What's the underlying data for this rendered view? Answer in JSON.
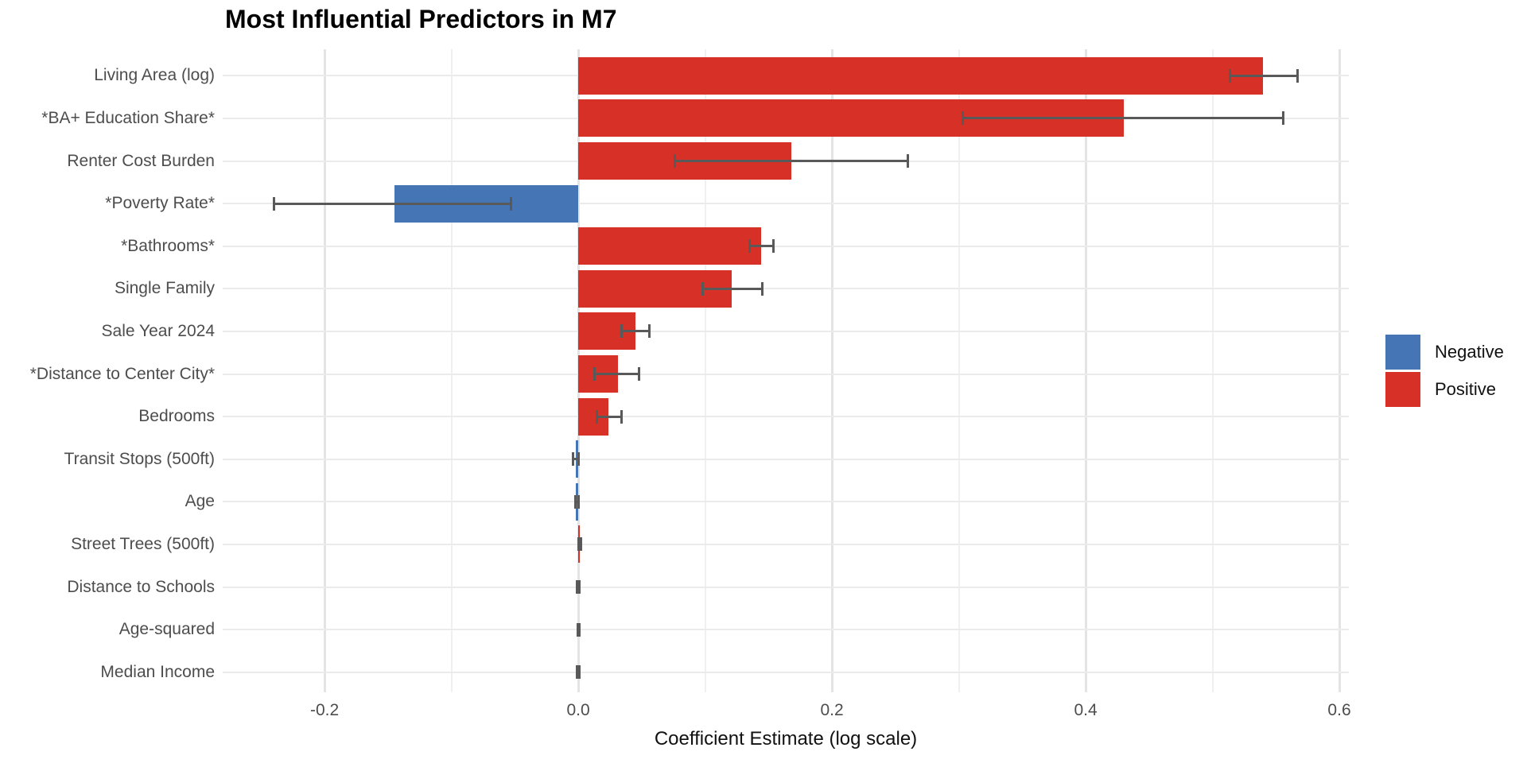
{
  "title": "Most Influential Predictors in M7",
  "chart_data": {
    "type": "bar",
    "orientation": "horizontal",
    "title": "Most Influential Predictors in M7",
    "xlabel": "Coefficient Estimate (log scale)",
    "ylabel": "",
    "xlim": [
      -0.2803,
      0.6075
    ],
    "x_ticks": [
      {
        "value": -0.2,
        "label": "-0.2"
      },
      {
        "value": 0.0,
        "label": "0.0"
      },
      {
        "value": 0.2,
        "label": "0.2"
      },
      {
        "value": 0.4,
        "label": "0.4"
      },
      {
        "value": 0.6,
        "label": "0.6"
      }
    ],
    "x_minor_gridlines": [
      -0.1,
      0.1,
      0.3,
      0.5
    ],
    "grid": true,
    "items": [
      {
        "label": "Living Area (log)",
        "value": 0.54,
        "ci_low": 0.514,
        "ci_high": 0.567,
        "sign": "positive"
      },
      {
        "label": "*BA+ Education Share*",
        "value": 0.43,
        "ci_low": 0.303,
        "ci_high": 0.556,
        "sign": "positive"
      },
      {
        "label": "Renter Cost Burden",
        "value": 0.168,
        "ci_low": 0.076,
        "ci_high": 0.26,
        "sign": "positive"
      },
      {
        "label": "*Poverty Rate*",
        "value": -0.145,
        "ci_low": -0.24,
        "ci_high": -0.053,
        "sign": "negative"
      },
      {
        "label": "*Bathrooms*",
        "value": 0.144,
        "ci_low": 0.135,
        "ci_high": 0.154,
        "sign": "positive"
      },
      {
        "label": "Single Family",
        "value": 0.121,
        "ci_low": 0.098,
        "ci_high": 0.145,
        "sign": "positive"
      },
      {
        "label": "Sale Year 2024",
        "value": 0.045,
        "ci_low": 0.034,
        "ci_high": 0.056,
        "sign": "positive"
      },
      {
        "label": "*Distance to Center City*",
        "value": 0.031,
        "ci_low": 0.013,
        "ci_high": 0.048,
        "sign": "positive"
      },
      {
        "label": "Bedrooms",
        "value": 0.024,
        "ci_low": 0.015,
        "ci_high": 0.034,
        "sign": "positive"
      },
      {
        "label": "Transit Stops (500ft)",
        "value": -0.0019,
        "ci_low": -0.004,
        "ci_high": 0.0005,
        "sign": "negative"
      },
      {
        "label": "Age",
        "value": -0.0017,
        "ci_low": -0.0023,
        "ci_high": 0.0002,
        "sign": "negative"
      },
      {
        "label": "Street Trees (500ft)",
        "value": 0.0014,
        "ci_low": 0.0003,
        "ci_high": 0.0021,
        "sign": "positive"
      },
      {
        "label": "Distance to Schools",
        "value": 0.0,
        "ci_low": -0.0008,
        "ci_high": 0.0008,
        "sign": "positive"
      },
      {
        "label": "Age-squared",
        "value": 0.0,
        "ci_low": -0.0006,
        "ci_high": 0.0006,
        "sign": "positive"
      },
      {
        "label": "Median Income",
        "value": 0.0,
        "ci_low": -0.0007,
        "ci_high": 0.0007,
        "sign": "positive"
      }
    ],
    "legend": {
      "position": "right",
      "entries": [
        {
          "label": "Negative",
          "color": "#4575b4"
        },
        {
          "label": "Positive",
          "color": "#d73027"
        }
      ]
    },
    "colors": {
      "positive": "#d73027",
      "negative": "#4575b4",
      "errorbar": "#595959",
      "grid_major": "#e4e4e4",
      "grid_minor": "#f0f0f0",
      "axis_text": "#4d4d4d",
      "title_text": "#000000"
    }
  }
}
